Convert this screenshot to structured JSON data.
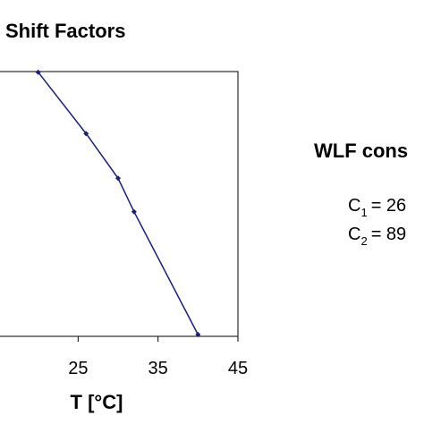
{
  "chart_data": {
    "type": "line",
    "title": "Shift Factors",
    "xlabel": "T [°C]",
    "ylabel": "",
    "xlim": [
      15,
      45
    ],
    "x_ticks": [
      "25",
      "35",
      "45"
    ],
    "x_tick_values": [
      25,
      35,
      45
    ],
    "grid": false,
    "series": [
      {
        "color": "#1a1f7a",
        "points": [
          {
            "x": 20,
            "y": 9.4
          },
          {
            "x": 26,
            "y": 7.2
          },
          {
            "x": 30,
            "y": 5.6
          },
          {
            "x": 32,
            "y": 4.4
          },
          {
            "x": 40,
            "y": 0.0
          }
        ]
      }
    ],
    "y_range": [
      0,
      10
    ]
  },
  "side_panel": {
    "title": "WLF cons",
    "c1": {
      "symbol": "C",
      "sub": "1",
      "value": "= 26"
    },
    "c2": {
      "symbol": "C",
      "sub": "2",
      "value": "= 89"
    }
  },
  "colors": {
    "line": "#1a1f7a",
    "axis": "#000000"
  }
}
